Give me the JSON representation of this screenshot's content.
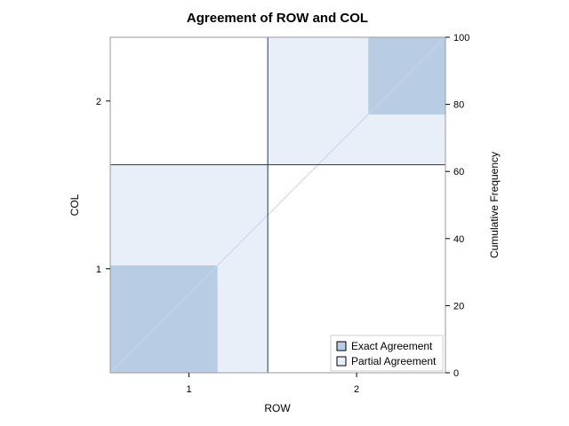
{
  "chart_data": {
    "type": "agreement-plot",
    "title": "Agreement of ROW and COL",
    "xlabel": "ROW",
    "ylabel": "COL",
    "y2label": "Cumulative Frequency",
    "categories": [
      "1",
      "2"
    ],
    "row_cumulative_frequency": [
      47,
      100
    ],
    "col_cumulative_frequency": [
      62,
      100
    ],
    "exact_agreement": [
      {
        "category": "1",
        "row_start": 0,
        "row_end": 32,
        "col_start": 0,
        "col_end": 32
      },
      {
        "category": "2",
        "row_start": 77,
        "row_end": 100,
        "col_start": 77,
        "col_end": 100
      }
    ],
    "y2lim": [
      0,
      100
    ],
    "y2ticks": [
      0,
      20,
      40,
      60,
      80,
      100
    ],
    "legend": {
      "position": "bottom-right-inside",
      "items": [
        {
          "label": "Exact Agreement",
          "color": "#b8cce4"
        },
        {
          "label": "Partial Agreement",
          "color": "#e8eff9"
        }
      ]
    },
    "colors": {
      "exact": "#b8cce4",
      "partial": "#e8eff9",
      "diagonal": "#c7d3ea",
      "grid_lines": "#1f3a5a",
      "frame": "#9a9a9a"
    }
  }
}
